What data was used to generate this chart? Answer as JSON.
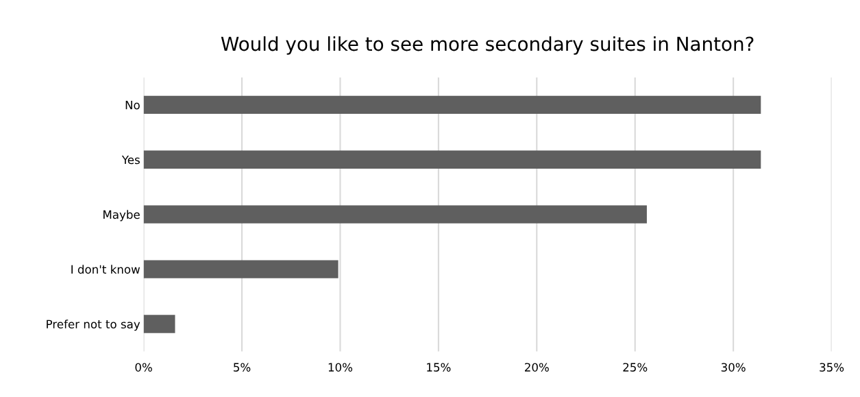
{
  "chart_data": {
    "type": "bar",
    "orientation": "horizontal",
    "title": "Would you like to see more secondary suites in Nanton?",
    "categories": [
      "No",
      "Yes",
      "Maybe",
      "I don't know",
      "Prefer not to say"
    ],
    "values": [
      31.4,
      31.4,
      25.6,
      9.9,
      1.6
    ],
    "color": "#5f5f5f",
    "xlim": [
      0,
      35
    ],
    "xticks": [
      {
        "value": 0,
        "label": "0%"
      },
      {
        "value": 5,
        "label": "5%"
      },
      {
        "value": 10,
        "label": "10%"
      },
      {
        "value": 15,
        "label": "15%"
      },
      {
        "value": 20,
        "label": "20%"
      },
      {
        "value": 25,
        "label": "25%"
      },
      {
        "value": 30,
        "label": "30%"
      },
      {
        "value": 35,
        "label": "35%"
      }
    ],
    "grid": "x",
    "legend": false
  }
}
